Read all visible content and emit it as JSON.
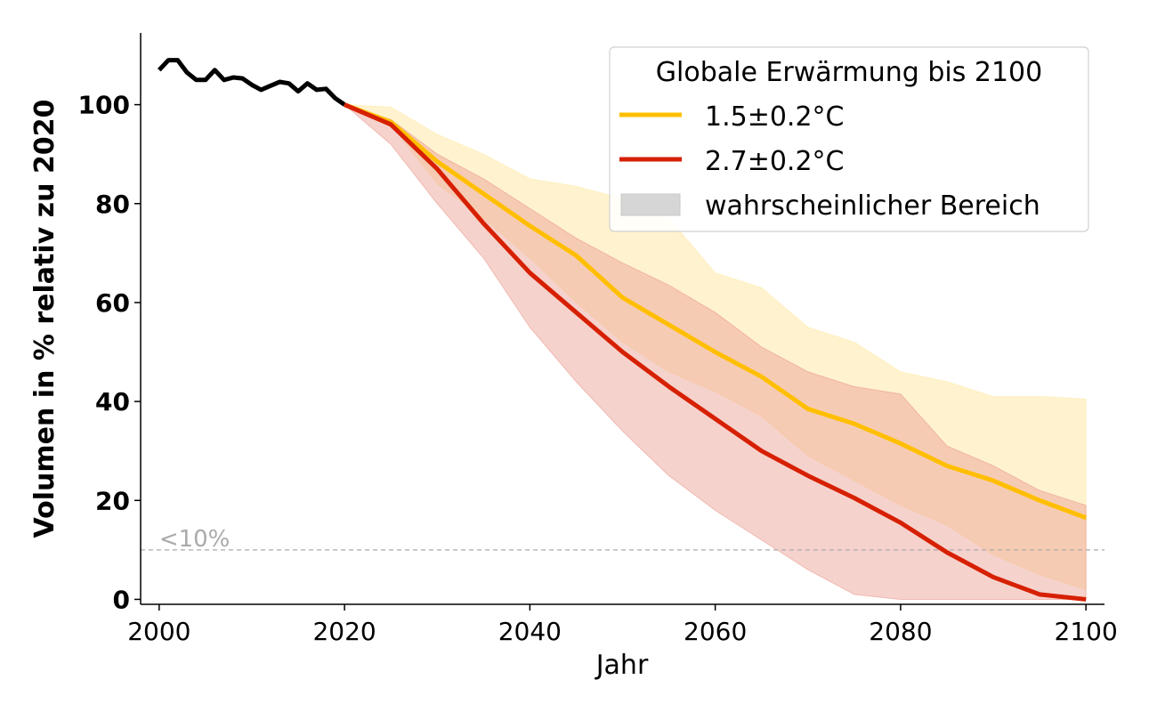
{
  "chart_data": {
    "type": "line",
    "xlabel": "Jahr",
    "ylabel": "Volumen in % relativ zu 2020",
    "xlim": [
      1998,
      2102
    ],
    "ylim": [
      -1,
      114.5
    ],
    "xticks": [
      2000,
      2020,
      2040,
      2060,
      2080,
      2100
    ],
    "yticks": [
      0,
      20,
      40,
      60,
      80,
      100
    ],
    "grid": false,
    "legend": {
      "title": "Globale Erwärmung bis 2100",
      "placement": "top-right",
      "entries": [
        "1.5±0.2°C",
        "2.7±0.2°C",
        "wahrscheinlicher Bereich"
      ],
      "band_swatch_color": "#d6d6d6"
    },
    "threshold": {
      "y": 10,
      "label": "<10%",
      "color": "#aaaaaa"
    },
    "historical": {
      "color": "#000000",
      "x": [
        2000,
        2001,
        2002,
        2003,
        2004,
        2005,
        2006,
        2007,
        2008,
        2009,
        2010,
        2011,
        2012,
        2013,
        2014,
        2015,
        2016,
        2017,
        2018,
        2019,
        2020
      ],
      "y": [
        107,
        109,
        109,
        106.5,
        105,
        105,
        107,
        105,
        105.5,
        105.3,
        104,
        103,
        103.8,
        104.6,
        104.3,
        102.7,
        104.3,
        103,
        103.2,
        101.3,
        100
      ]
    },
    "x": [
      2020,
      2025,
      2030,
      2035,
      2040,
      2045,
      2050,
      2055,
      2060,
      2065,
      2070,
      2075,
      2080,
      2085,
      2090,
      2095,
      2100
    ],
    "series": [
      {
        "name": "1.5±0.2°C",
        "color": "#ffbf00",
        "band_color": "#ffe9a8",
        "median": [
          100,
          96.5,
          88.5,
          82,
          75.5,
          69.5,
          61,
          55.5,
          50,
          45,
          38.5,
          35.5,
          31.5,
          27,
          24,
          20,
          16.5
        ],
        "upper": [
          100,
          99.5,
          94,
          90,
          85,
          83.5,
          81,
          77,
          66,
          63,
          55,
          52,
          46,
          44,
          41,
          41,
          40.5
        ],
        "lower": [
          100,
          96,
          84,
          77,
          69,
          60,
          52,
          46,
          42,
          37,
          29,
          24,
          19,
          15,
          9,
          5,
          2
        ]
      },
      {
        "name": "2.7±0.2°C",
        "color": "#d62000",
        "band_color": "#eb9b90",
        "median": [
          100,
          96,
          87,
          76,
          66,
          58,
          50,
          43,
          36.5,
          30,
          25,
          20.5,
          15.5,
          9.5,
          4.5,
          1,
          0
        ],
        "upper": [
          100,
          97,
          90,
          85,
          79,
          73,
          68,
          63.5,
          58,
          51,
          46,
          43,
          41.5,
          31,
          27,
          22,
          19
        ],
        "lower": [
          100,
          92,
          80,
          69,
          55,
          44,
          34,
          25,
          18,
          12,
          6,
          1,
          0,
          0,
          0,
          0,
          0
        ]
      }
    ]
  }
}
